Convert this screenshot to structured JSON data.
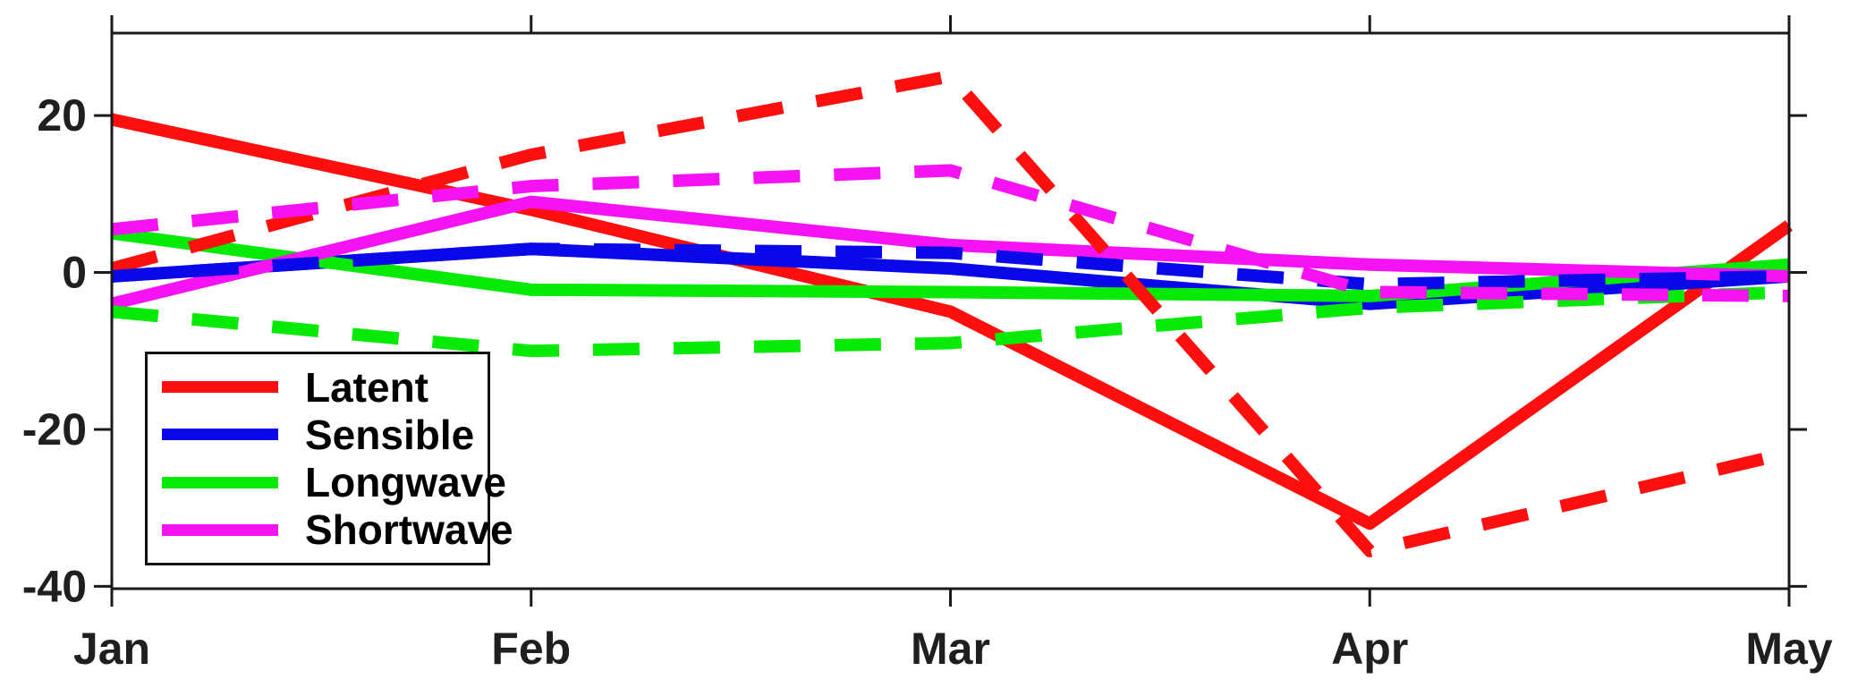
{
  "chart_data": {
    "type": "line",
    "title": "",
    "xlabel": "",
    "ylabel": "",
    "x_categories": [
      "Jan",
      "Feb",
      "Mar",
      "Apr",
      "May"
    ],
    "y_ticks": [
      20,
      0,
      -20,
      -40
    ],
    "ylim": [
      -40.3,
      30.5
    ],
    "grid": false,
    "box": true,
    "tick_direction": "out",
    "legend_position": "lower-left-inside",
    "line_width": 14,
    "dash_pattern": [
      52,
      38
    ],
    "axis_color": "#1a1a1a",
    "series": [
      {
        "name": "Latent",
        "style": "solid",
        "color": "#ff0e0e",
        "in_legend": true,
        "values": [
          19.5,
          8,
          -5,
          -32,
          6
        ]
      },
      {
        "name": "Sensible",
        "style": "solid",
        "color": "#0808e8",
        "in_legend": true,
        "values": [
          -0.5,
          3,
          0.5,
          -4,
          -0.5
        ]
      },
      {
        "name": "Longwave",
        "style": "solid",
        "color": "#06ea06",
        "in_legend": true,
        "values": [
          5,
          -2.2,
          -2.5,
          -3,
          1
        ]
      },
      {
        "name": "Shortwave",
        "style": "solid",
        "color": "#f513f5",
        "in_legend": true,
        "values": [
          -4,
          9,
          3.5,
          1,
          -0.5
        ]
      },
      {
        "name": "Latent dashed",
        "style": "dashed",
        "color": "#ff0e0e",
        "in_legend": false,
        "values": [
          0.5,
          15,
          25,
          -35.5,
          -23
        ]
      },
      {
        "name": "Sensible dashed",
        "style": "dashed",
        "color": "#0808e8",
        "in_legend": false,
        "values": [
          -0.5,
          3,
          2.5,
          -1.5,
          -0.5
        ]
      },
      {
        "name": "Longwave dashed",
        "style": "dashed",
        "color": "#06ea06",
        "in_legend": false,
        "values": [
          -5,
          -10,
          -9,
          -4.5,
          -2.5
        ]
      },
      {
        "name": "Shortwave dashed",
        "style": "dashed",
        "color": "#f513f5",
        "in_legend": false,
        "values": [
          5.5,
          11,
          13,
          -2.5,
          -3
        ]
      }
    ]
  },
  "legend": {
    "entries": [
      "Latent",
      "Sensible",
      "Longwave",
      "Shortwave"
    ]
  }
}
